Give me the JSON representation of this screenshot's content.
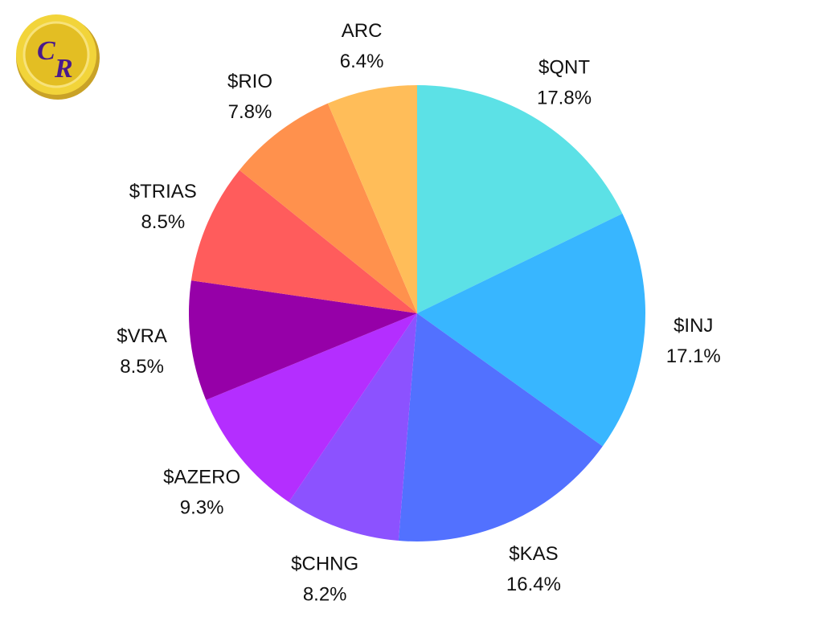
{
  "logo": {
    "name": "CR",
    "letters": [
      "C",
      "R"
    ]
  },
  "chart_data": {
    "type": "pie",
    "start_angle_deg": 0,
    "direction": "clockwise",
    "slices": [
      {
        "name": "$QNT",
        "value": 17.8,
        "label": "17.8%",
        "color": "#5CE1E6"
      },
      {
        "name": "$INJ",
        "value": 17.1,
        "label": "17.1%",
        "color": "#38B6FF"
      },
      {
        "name": "$KAS",
        "value": 16.4,
        "label": "16.4%",
        "color": "#5271FF"
      },
      {
        "name": "$CHNG",
        "value": 8.2,
        "label": "8.2%",
        "color": "#8C52FF"
      },
      {
        "name": "$AZERO",
        "value": 9.3,
        "label": "9.3%",
        "color": "#B42EFF"
      },
      {
        "name": "$VRA",
        "value": 8.5,
        "label": "8.5%",
        "color": "#9600A8"
      },
      {
        "name": "$TRIAS",
        "value": 8.5,
        "label": "8.5%",
        "color": "#FF5C5C"
      },
      {
        "name": "$RIO",
        "value": 7.8,
        "label": "7.8%",
        "color": "#FF914D"
      },
      {
        "name": "ARC",
        "value": 6.4,
        "label": "6.4%",
        "color": "#FFBD59"
      }
    ]
  }
}
